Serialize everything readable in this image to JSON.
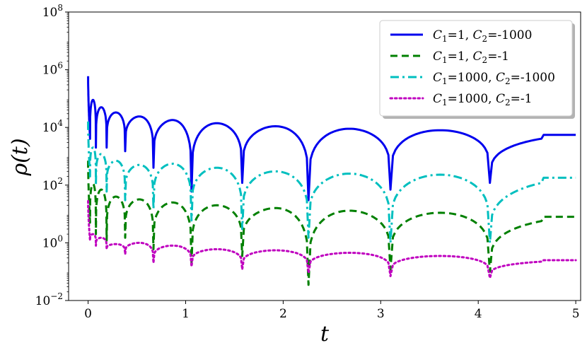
{
  "chart_data": {
    "type": "line",
    "xlabel": "t",
    "ylabel": "ρ(t)",
    "xlim": [
      -0.2,
      5.05
    ],
    "ylim": [
      0.01,
      100000000
    ],
    "y_scale": "log",
    "x_ticks": [
      0,
      1,
      2,
      3,
      4,
      5
    ],
    "x_tick_labels": [
      "0",
      "1",
      "2",
      "3",
      "4",
      "5"
    ],
    "y_ticks": [
      0.01,
      1,
      100,
      10000,
      1000000,
      100000000
    ],
    "y_tick_labels": [
      {
        "base": "10",
        "exp": "−2"
      },
      {
        "base": "10",
        "exp": "0"
      },
      {
        "base": "10",
        "exp": "2"
      },
      {
        "base": "10",
        "exp": "4"
      },
      {
        "base": "10",
        "exp": "6"
      },
      {
        "base": "10",
        "exp": "8"
      }
    ],
    "grid": false,
    "legend_position": "top-right",
    "dips_at_t": [
      0.02,
      0.08,
      0.19,
      0.38,
      0.67,
      1.06,
      1.58,
      2.26,
      3.1,
      4.12
    ],
    "series": [
      {
        "name": "C1=1, C2=-1000",
        "legend": {
          "c1": "1",
          "c2": "-1000"
        },
        "color": "#0000ee",
        "style": "solid",
        "peaks": [
          {
            "t": 0.0,
            "y": 600000
          },
          {
            "t": 0.05,
            "y": 150000
          },
          {
            "t": 0.13,
            "y": 90000
          },
          {
            "t": 0.28,
            "y": 50000
          },
          {
            "t": 0.52,
            "y": 33000
          },
          {
            "t": 0.86,
            "y": 24000
          },
          {
            "t": 1.3,
            "y": 18000
          },
          {
            "t": 1.9,
            "y": 14000
          },
          {
            "t": 2.65,
            "y": 11000
          },
          {
            "t": 3.6,
            "y": 9000
          },
          {
            "t": 4.65,
            "y": 8000
          },
          {
            "t": 5.0,
            "y": 5500
          }
        ],
        "troughs": [
          4000,
          2000,
          2000,
          1500,
          400,
          60,
          120,
          30,
          70,
          120
        ]
      },
      {
        "name": "C1=1, C2=-1",
        "legend": {
          "c1": "1",
          "c2": "-1"
        },
        "color": "#008000",
        "style": "dashed",
        "peaks": [
          {
            "t": 0.0,
            "y": 700
          },
          {
            "t": 0.05,
            "y": 200
          },
          {
            "t": 0.13,
            "y": 110
          },
          {
            "t": 0.28,
            "y": 70
          },
          {
            "t": 0.52,
            "y": 40
          },
          {
            "t": 0.86,
            "y": 32
          },
          {
            "t": 1.3,
            "y": 25
          },
          {
            "t": 1.9,
            "y": 20
          },
          {
            "t": 2.65,
            "y": 16
          },
          {
            "t": 3.6,
            "y": 13
          },
          {
            "t": 4.65,
            "y": 11
          },
          {
            "t": 5.0,
            "y": 8
          }
        ],
        "troughs": [
          5,
          2,
          1.2,
          1.5,
          0.6,
          0.2,
          0.35,
          0.035,
          0.12,
          0.1
        ]
      },
      {
        "name": "C1=1000, C2=-1000",
        "legend": {
          "c1": "1000",
          "c2": "-1000"
        },
        "color": "#00bfbf",
        "style": "dashdot",
        "peaks": [
          {
            "t": 0.0,
            "y": 16000
          },
          {
            "t": 0.05,
            "y": 3500
          },
          {
            "t": 0.13,
            "y": 2000
          },
          {
            "t": 0.28,
            "y": 1200
          },
          {
            "t": 0.52,
            "y": 700
          },
          {
            "t": 0.86,
            "y": 500
          },
          {
            "t": 1.3,
            "y": 550
          },
          {
            "t": 1.9,
            "y": 400
          },
          {
            "t": 2.65,
            "y": 300
          },
          {
            "t": 3.6,
            "y": 250
          },
          {
            "t": 4.65,
            "y": 230
          },
          {
            "t": 5.0,
            "y": 180
          }
        ],
        "troughs": [
          200,
          100,
          60,
          30,
          15,
          6,
          3,
          1.5,
          1,
          1
        ]
      },
      {
        "name": "C1=1000, C2=-1",
        "legend": {
          "c1": "1000",
          "c2": "-1"
        },
        "color": "#bf00bf",
        "style": "dotted",
        "peaks": [
          {
            "t": 0.0,
            "y": 28
          },
          {
            "t": 0.05,
            "y": 3
          },
          {
            "t": 0.13,
            "y": 2
          },
          {
            "t": 0.28,
            "y": 1.5
          },
          {
            "t": 0.52,
            "y": 0.9
          },
          {
            "t": 0.86,
            "y": 1.0
          },
          {
            "t": 1.3,
            "y": 0.8
          },
          {
            "t": 1.9,
            "y": 0.6
          },
          {
            "t": 2.65,
            "y": 0.55
          },
          {
            "t": 3.6,
            "y": 0.45
          },
          {
            "t": 4.65,
            "y": 0.35
          },
          {
            "t": 5.0,
            "y": 0.25
          }
        ],
        "troughs": [
          1.2,
          0.8,
          0.6,
          0.4,
          0.2,
          0.15,
          0.12,
          0.09,
          0.07,
          0.06
        ]
      }
    ]
  }
}
